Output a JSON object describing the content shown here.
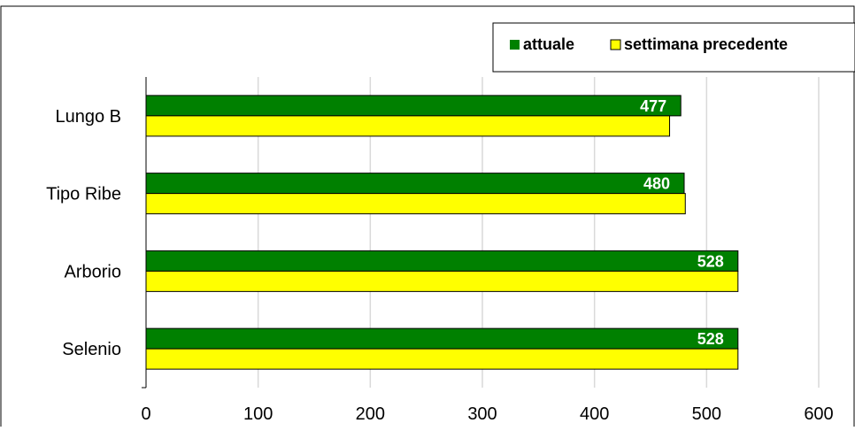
{
  "chart_data": {
    "type": "bar",
    "orientation": "horizontal",
    "categories": [
      "Lungo B",
      "Tipo Ribe",
      "Arborio",
      "Selenio"
    ],
    "series": [
      {
        "name": "attuale",
        "values": [
          477,
          480,
          528,
          528
        ],
        "color": "#008000",
        "show_labels": true
      },
      {
        "name": "settimana precedente",
        "values": [
          467,
          481,
          528,
          528
        ],
        "color": "#ffff00",
        "show_labels": false
      }
    ],
    "xlim": [
      0,
      600
    ],
    "xticks": [
      "0",
      "100",
      "200",
      "300",
      "400",
      "500",
      "600"
    ],
    "grid": true,
    "legend_position": "top-right"
  }
}
